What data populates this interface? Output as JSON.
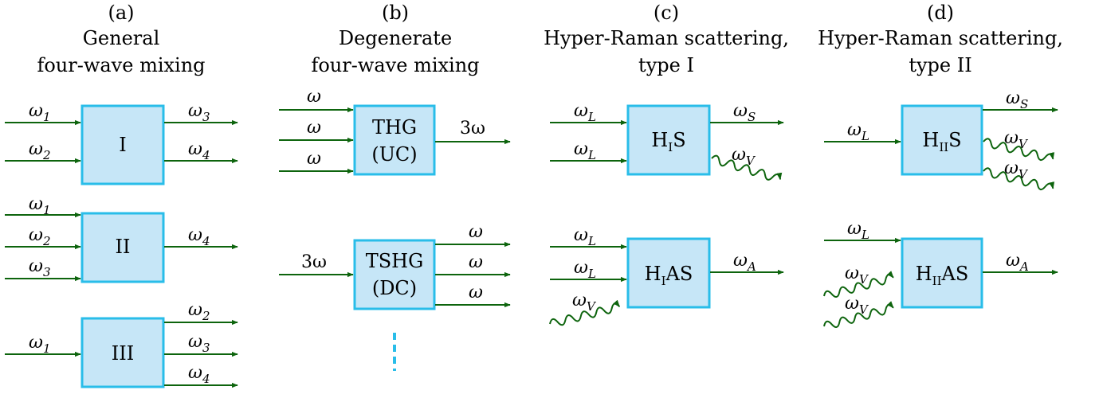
{
  "panels": {
    "a": {
      "letter": "(a)",
      "line1": "General",
      "line2": "four-wave mixing"
    },
    "b": {
      "letter": "(b)",
      "line1": "Degenerate",
      "line2": "four-wave mixing"
    },
    "c": {
      "letter": "(c)",
      "line1": "Hyper-Raman scattering,",
      "line2": "type I"
    },
    "d": {
      "letter": "(d)",
      "line1": "Hyper-Raman scattering,",
      "line2": "type II"
    }
  },
  "boxes": {
    "a1": "I",
    "a2": "II",
    "a3": "III",
    "b1_l1": "THG",
    "b1_l2": "(UC)",
    "b2_l1": "TSHG",
    "b2_l2": "(DC)",
    "c1_main": "H",
    "c1_sub": "I",
    "c1_tail": "S",
    "c2_main": "H",
    "c2_sub": "I",
    "c2_tail": "AS",
    "d1_main": "H",
    "d1_sub": "II",
    "d1_tail": "S",
    "d2_main": "H",
    "d2_sub": "II",
    "d2_tail": "AS"
  },
  "symbols": {
    "omega": "ω",
    "three_omega": "3ω",
    "sub1": "1",
    "sub2": "2",
    "sub3": "3",
    "sub4": "4",
    "subL": "L",
    "subS": "S",
    "subV": "V",
    "subA": "A"
  },
  "colors": {
    "box_fill": "#c6e6f7",
    "box_border": "#29bde9",
    "arrow": "#0d640d"
  }
}
